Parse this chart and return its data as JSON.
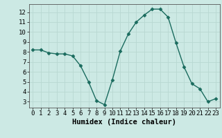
{
  "x": [
    0,
    1,
    2,
    3,
    4,
    5,
    6,
    7,
    8,
    9,
    10,
    11,
    12,
    13,
    14,
    15,
    16,
    17,
    18,
    19,
    20,
    21,
    22,
    23
  ],
  "y": [
    8.2,
    8.2,
    7.9,
    7.8,
    7.8,
    7.6,
    6.6,
    5.0,
    3.1,
    2.7,
    5.2,
    8.1,
    9.8,
    11.0,
    11.7,
    12.3,
    12.3,
    11.5,
    8.9,
    6.5,
    4.8,
    4.3,
    3.0,
    3.3
  ],
  "line_color": "#1a6b5e",
  "marker": "D",
  "markersize": 2.5,
  "linewidth": 1.0,
  "bg_color": "#cce9e4",
  "grid_color": "#b8d8d2",
  "xlabel": "Humidex (Indice chaleur)",
  "xlim": [
    -0.5,
    23.5
  ],
  "ylim": [
    2.4,
    12.8
  ],
  "yticks": [
    3,
    4,
    5,
    6,
    7,
    8,
    9,
    10,
    11,
    12
  ],
  "xticks": [
    0,
    1,
    2,
    3,
    4,
    5,
    6,
    7,
    8,
    9,
    10,
    11,
    12,
    13,
    14,
    15,
    16,
    17,
    18,
    19,
    20,
    21,
    22,
    23
  ],
  "xtick_labels": [
    "0",
    "1",
    "2",
    "3",
    "4",
    "5",
    "6",
    "7",
    "8",
    "9",
    "10",
    "11",
    "12",
    "13",
    "14",
    "15",
    "16",
    "17",
    "18",
    "19",
    "20",
    "21",
    "22",
    "23"
  ],
  "label_fontsize": 7.5,
  "tick_fontsize": 6.5
}
